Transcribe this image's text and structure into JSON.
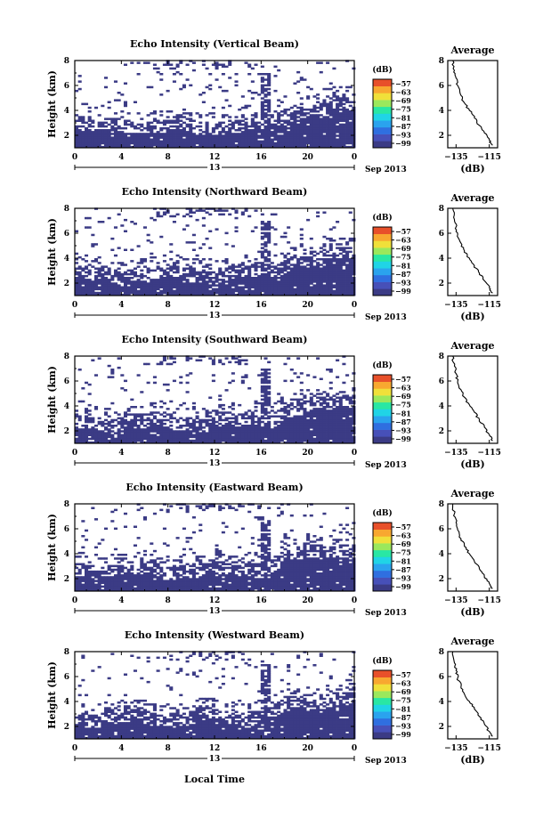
{
  "colors": {
    "fill": "#3b3b85",
    "colorbar": [
      "#3b3b85",
      "#4750b8",
      "#2f6fe0",
      "#2aa3ee",
      "#20d4e6",
      "#29e7a4",
      "#9be85c",
      "#f0e03a",
      "#f8a830",
      "#e8502a"
    ]
  },
  "figure": {
    "xlabel": "Local Time",
    "date_label": "Sep 2013",
    "ylabel": "Height (km)",
    "colorbar_unit": "(dB)",
    "colorbar_ticks": [
      "−57",
      "−63",
      "−69",
      "−75",
      "−81",
      "−87",
      "−93",
      "−99"
    ],
    "profile_title": "Average",
    "profile_xlabel": "(dB)",
    "profile_xticks": [
      "−135",
      "−115"
    ],
    "profile_yticks": [
      "2",
      "4",
      "6",
      "8"
    ],
    "x_tick_labels": [
      "0",
      "4",
      "8",
      "12",
      "16",
      "20",
      "0"
    ],
    "y_tick_labels": [
      "2",
      "4",
      "6",
      "8"
    ],
    "day_marker": "13"
  },
  "chart_data": [
    {
      "type": "heatmap",
      "title": "Echo Intensity (Vertical Beam)",
      "xlim": [
        0,
        24
      ],
      "ylim": [
        1,
        8
      ],
      "profile": {
        "type": "line",
        "xlim": [
          -140,
          -110
        ],
        "ylim": [
          1,
          8
        ],
        "x": [
          -137,
          -136,
          -135,
          -134,
          -132,
          -130,
          -127,
          -124,
          -121,
          -118,
          -115,
          -113
        ],
        "y": [
          8,
          7.2,
          6.6,
          6.0,
          5.2,
          4.6,
          4.0,
          3.4,
          2.8,
          2.2,
          1.6,
          1.2
        ]
      }
    },
    {
      "type": "heatmap",
      "title": "Echo Intensity (Northward Beam)",
      "xlim": [
        0,
        24
      ],
      "ylim": [
        1,
        8
      ],
      "profile": {
        "type": "line",
        "xlim": [
          -140,
          -110
        ],
        "ylim": [
          1,
          8
        ],
        "x": [
          -137,
          -136,
          -135,
          -134,
          -132,
          -130,
          -127,
          -124,
          -121,
          -118,
          -115,
          -113
        ],
        "y": [
          8,
          7.1,
          6.5,
          5.9,
          5.2,
          4.6,
          4.0,
          3.4,
          2.8,
          2.2,
          1.6,
          1.2
        ]
      }
    },
    {
      "type": "heatmap",
      "title": "Echo Intensity (Southward Beam)",
      "xlim": [
        0,
        24
      ],
      "ylim": [
        1,
        8
      ],
      "profile": {
        "type": "line",
        "xlim": [
          -140,
          -110
        ],
        "ylim": [
          1,
          8
        ],
        "x": [
          -137,
          -136,
          -135,
          -134,
          -132,
          -130,
          -127,
          -124,
          -121,
          -118,
          -115,
          -113
        ],
        "y": [
          8,
          7.2,
          6.6,
          6.0,
          5.3,
          4.7,
          4.1,
          3.5,
          2.9,
          2.3,
          1.7,
          1.2
        ]
      }
    },
    {
      "type": "heatmap",
      "title": "Echo Intensity (Eastward Beam)",
      "xlim": [
        0,
        24
      ],
      "ylim": [
        1,
        8
      ],
      "profile": {
        "type": "line",
        "xlim": [
          -140,
          -110
        ],
        "ylim": [
          1,
          8
        ],
        "x": [
          -137,
          -136,
          -135,
          -134,
          -132,
          -130,
          -127,
          -124,
          -121,
          -118,
          -115,
          -113
        ],
        "y": [
          8,
          7.2,
          6.5,
          5.9,
          5.2,
          4.6,
          4.0,
          3.4,
          2.8,
          2.2,
          1.6,
          1.2
        ]
      }
    },
    {
      "type": "heatmap",
      "title": "Echo Intensity (Westward Beam)",
      "xlim": [
        0,
        24
      ],
      "ylim": [
        1,
        8
      ],
      "profile": {
        "type": "line",
        "xlim": [
          -140,
          -110
        ],
        "ylim": [
          1,
          8
        ],
        "x": [
          -137,
          -136,
          -135,
          -134,
          -132,
          -130,
          -127,
          -124,
          -121,
          -118,
          -115,
          -113
        ],
        "y": [
          8,
          7.1,
          6.5,
          5.9,
          5.2,
          4.6,
          4.0,
          3.4,
          2.8,
          2.2,
          1.6,
          1.2
        ]
      }
    }
  ]
}
